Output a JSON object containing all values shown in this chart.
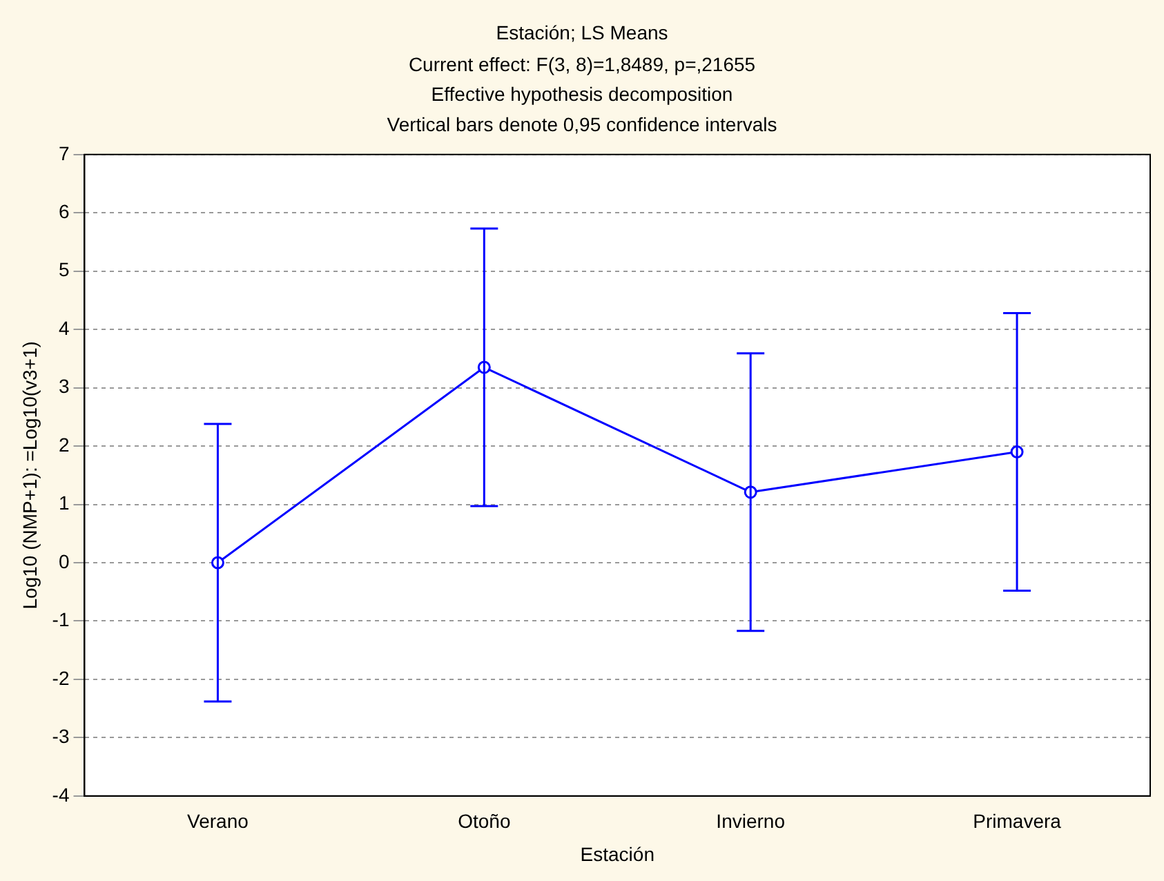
{
  "chart_data": {
    "type": "line",
    "title": "Estación; LS Means",
    "subtitle": "Current effect: F(3, 8)=1,8489, p=,21655",
    "annotations": [
      "Effective hypothesis decomposition",
      "Vertical bars denote 0,95 confidence intervals"
    ],
    "xlabel": "Estación",
    "ylabel": "Log10 (NMP+1): =Log10(v3+1)",
    "categories": [
      "Verano",
      "Otoño",
      "Invierno",
      "Primavera"
    ],
    "series": [
      {
        "color": "#0000ff",
        "values": [
          0,
          3.35,
          1.21,
          1.9
        ],
        "errors": [
          2.38,
          2.38,
          2.38,
          2.38
        ]
      }
    ],
    "ylim": [
      -4,
      7
    ],
    "yticks": [
      -4,
      -3,
      -2,
      -1,
      0,
      1,
      2,
      3,
      4,
      5,
      6,
      7
    ],
    "grid": "y",
    "legend": false,
    "marker": "circle",
    "line_style": "solid"
  }
}
